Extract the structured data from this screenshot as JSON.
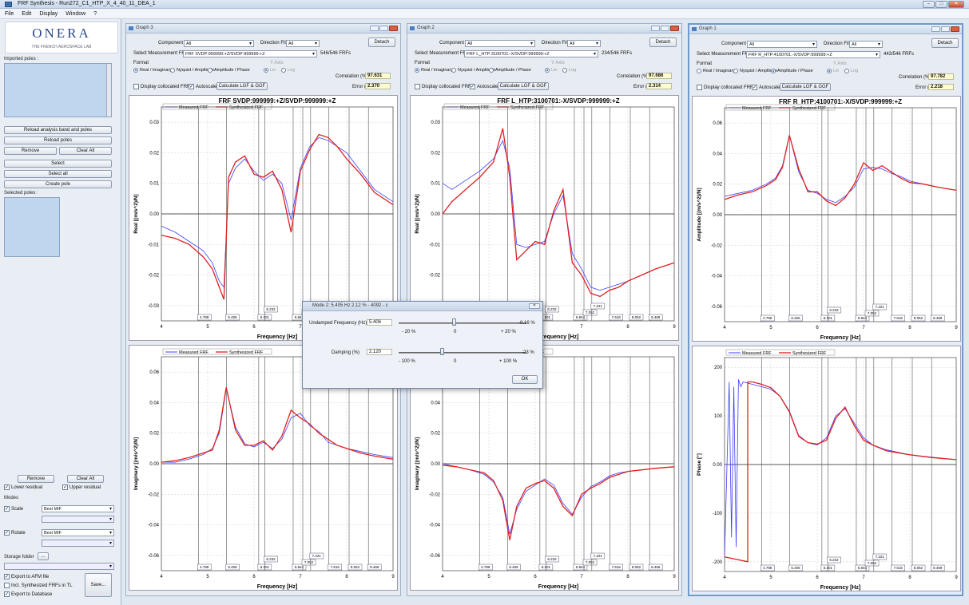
{
  "app": {
    "title": "FRF Synthesis - Run272_C1_HTP_X_4_40_11_DEA_1"
  },
  "menu": [
    "File",
    "Edit",
    "Display",
    "Window",
    "?"
  ],
  "left": {
    "logo_main": "ONERA",
    "logo_sub": "THE FRENCH AEROSPACE LAB",
    "imported_poles": "Imported poles :",
    "reload_band_poles": "Reload analysis band and poles",
    "reload_poles": "Reload poles",
    "remove": "Remove",
    "clear_all": "Clear All",
    "select": "Select",
    "select_all": "Select all",
    "create_pole": "Create pole",
    "selected_poles": "Selected poles :",
    "remove2": "Remove",
    "clear_all2": "Clear All",
    "lower_residual": "Lower residual",
    "upper_residual": "Upper residual",
    "modes": "Modes",
    "scale": "Scale",
    "scale_val": "Best MIF",
    "rotate": "Rotate",
    "rotate_val": "Best MIF",
    "storage_folder": "Storage folder",
    "storage_btn": "...",
    "export_afm": "Export to AFM file",
    "incl_synth": "Incl. Synthesized FRFs in TL",
    "export_db": "Export to Database",
    "save": "Save..."
  },
  "common": {
    "component_filter": "Component Filter:",
    "direction_filter": "Direction Filter:",
    "all": "All",
    "select_frf": "Select Measurement FRF",
    "detach": "Detach",
    "format": "Format",
    "y_axis": "Y Axis",
    "real_imag": "Real / Imaginary",
    "nyquist": "Nyquist / Amplitude",
    "amp_phase": "Amplitude / Phase",
    "lin": "Lin",
    "log": "Log",
    "correlation": "Correlation (%):",
    "error": "Error (%):",
    "display_coll": "Display collocated FRFs",
    "autoscale": "Autoscale",
    "calc": "Calculate LGF & GGF",
    "measured": "Measured FRF",
    "synthesized": "Synthesized FRF",
    "xlabel": "Frequency [Hz]"
  },
  "panels": [
    {
      "title": "Graph 3",
      "frf": "FRF SVDP:999999:+Z/SVDP:999999:+Z",
      "count": "546/546 FRFs",
      "corr": "97.631",
      "err": "2.370",
      "plot_title": "FRF SVDP:999999:+Z/SVDP:999999:+Z",
      "fmt": 0
    },
    {
      "title": "Graph 2",
      "frf": "FRF L_HTP:3100701:-X/SVDP:999999:+Z",
      "count": "234/546 FRFs",
      "corr": "97.686",
      "err": "2.314",
      "plot_title": "FRF L_HTP:3100701:-X/SVDP:999999:+Z",
      "fmt": 0
    },
    {
      "title": "Graph 1",
      "frf": "FRF R_HTP:4100701:-X/SVDP:999999:+Z",
      "count": "443/546 FRFs",
      "corr": "97.782",
      "err": "2.218",
      "plot_title": "FRF R_HTP:4100701:-X/SVDP:999999:+Z",
      "fmt": 2
    }
  ],
  "chart_data": [
    {
      "type": "line",
      "name": "Graph 3 top",
      "ylabel": "Real [(m/s^2)/N]",
      "xlim": [
        4,
        9
      ],
      "ylim": [
        -0.035,
        0.035
      ],
      "yticks": [
        0.03,
        0.02,
        0.01,
        0.0,
        -0.01,
        -0.02,
        -0.03
      ],
      "series": [
        {
          "name": "Measured FRF",
          "color": "#3d3dff",
          "x": [
            4,
            4.3,
            4.6,
            4.9,
            5.1,
            5.25,
            5.35,
            5.45,
            5.6,
            5.8,
            6.0,
            6.2,
            6.4,
            6.6,
            6.8,
            7.0,
            7.2,
            7.4,
            7.6,
            7.8,
            8.0,
            8.3,
            8.6,
            9.0
          ],
          "y": [
            -0.004,
            -0.006,
            -0.009,
            -0.012,
            -0.016,
            -0.022,
            -0.024,
            0.01,
            0.015,
            0.018,
            0.014,
            0.011,
            0.013,
            0.01,
            -0.002,
            0.015,
            0.022,
            0.025,
            0.024,
            0.022,
            0.02,
            0.014,
            0.008,
            0.004
          ]
        },
        {
          "name": "Synthesized FRF",
          "color": "#e02020",
          "x": [
            4,
            4.3,
            4.6,
            4.9,
            5.1,
            5.25,
            5.35,
            5.45,
            5.6,
            5.8,
            6.0,
            6.2,
            6.4,
            6.6,
            6.8,
            7.0,
            7.2,
            7.4,
            7.6,
            7.8,
            8.0,
            8.3,
            8.6,
            9.0
          ],
          "y": [
            -0.007,
            -0.008,
            -0.01,
            -0.014,
            -0.018,
            -0.024,
            -0.028,
            0.012,
            0.017,
            0.019,
            0.013,
            0.012,
            0.014,
            0.008,
            -0.006,
            0.014,
            0.021,
            0.026,
            0.025,
            0.022,
            0.018,
            0.013,
            0.007,
            0.003
          ]
        }
      ]
    },
    {
      "type": "line",
      "name": "Graph 2 top",
      "ylabel": "Real [(m/s^2)/N]",
      "xlim": [
        4,
        9
      ],
      "ylim": [
        -0.035,
        0.035
      ],
      "yticks": [
        0.03,
        0.02,
        0.01,
        0.0,
        -0.01,
        -0.02,
        -0.03
      ],
      "series": [
        {
          "name": "Measured FRF",
          "color": "#3d3dff",
          "x": [
            4,
            4.2,
            4.5,
            4.8,
            5.1,
            5.3,
            5.45,
            5.6,
            5.8,
            6.0,
            6.2,
            6.4,
            6.6,
            6.8,
            7.0,
            7.2,
            7.4,
            7.6,
            7.8,
            8.0,
            8.3,
            8.6,
            9.0
          ],
          "y": [
            0.01,
            0.008,
            0.011,
            0.014,
            0.018,
            0.024,
            0.015,
            -0.01,
            -0.011,
            -0.01,
            -0.009,
            0.0,
            0.006,
            -0.013,
            -0.018,
            -0.024,
            -0.025,
            -0.024,
            -0.023,
            -0.022,
            -0.02,
            -0.018,
            -0.016
          ]
        },
        {
          "name": "Synthesized FRF",
          "color": "#e02020",
          "x": [
            4,
            4.2,
            4.5,
            4.8,
            5.1,
            5.3,
            5.45,
            5.6,
            5.8,
            6.0,
            6.2,
            6.4,
            6.6,
            6.8,
            7.0,
            7.2,
            7.4,
            7.6,
            7.8,
            8.0,
            8.3,
            8.6,
            9.0
          ],
          "y": [
            0.0,
            0.004,
            0.008,
            0.012,
            0.017,
            0.028,
            0.012,
            -0.015,
            -0.012,
            -0.009,
            -0.01,
            0.001,
            0.008,
            -0.016,
            -0.02,
            -0.026,
            -0.027,
            -0.025,
            -0.024,
            -0.022,
            -0.02,
            -0.018,
            -0.016
          ]
        }
      ]
    },
    {
      "type": "line",
      "name": "Graph 1 top",
      "ylabel": "Amplitude [(m/s^2)/N]",
      "xlim": [
        4,
        9
      ],
      "ylim": [
        -0.07,
        0.07
      ],
      "yticks": [
        0.06,
        0.04,
        0.02,
        0.0,
        -0.02,
        -0.04,
        -0.06
      ],
      "series": [
        {
          "name": "Measured FRF",
          "color": "#3d3dff",
          "x": [
            4,
            4.3,
            4.6,
            4.9,
            5.1,
            5.25,
            5.4,
            5.6,
            5.8,
            6.0,
            6.2,
            6.4,
            6.6,
            6.8,
            7.0,
            7.2,
            7.4,
            7.6,
            7.8,
            8.0,
            8.3,
            8.6,
            9.0
          ],
          "y": [
            0.012,
            0.014,
            0.016,
            0.02,
            0.024,
            0.032,
            0.052,
            0.028,
            0.016,
            0.014,
            0.01,
            0.008,
            0.012,
            0.018,
            0.03,
            0.031,
            0.03,
            0.027,
            0.025,
            0.022,
            0.02,
            0.018,
            0.016
          ]
        },
        {
          "name": "Synthesized FRF",
          "color": "#e02020",
          "x": [
            4,
            4.3,
            4.6,
            4.9,
            5.1,
            5.25,
            5.4,
            5.6,
            5.8,
            6.0,
            6.2,
            6.4,
            6.6,
            6.8,
            7.0,
            7.2,
            7.4,
            7.6,
            7.8,
            8.0,
            8.3,
            8.6,
            9.0
          ],
          "y": [
            0.01,
            0.013,
            0.015,
            0.019,
            0.023,
            0.031,
            0.052,
            0.03,
            0.015,
            0.015,
            0.009,
            0.006,
            0.011,
            0.02,
            0.034,
            0.029,
            0.032,
            0.028,
            0.024,
            0.021,
            0.02,
            0.018,
            0.016
          ]
        }
      ]
    },
    {
      "type": "line",
      "name": "Graph 3 bottom",
      "ylabel": "Imaginary [(m/s^2)/N]",
      "xlim": [
        4,
        9
      ],
      "ylim": [
        -0.07,
        0.07
      ],
      "yticks": [
        0.06,
        0.04,
        0.02,
        0.0,
        -0.02,
        -0.04,
        -0.06
      ],
      "series": [
        {
          "name": "Measured FRF",
          "color": "#3d3dff",
          "x": [
            4,
            4.3,
            4.6,
            4.9,
            5.1,
            5.25,
            5.4,
            5.6,
            5.8,
            6.0,
            6.2,
            6.4,
            6.6,
            6.8,
            7.0,
            7.2,
            7.4,
            7.6,
            7.8,
            8.0,
            8.3,
            8.6,
            9.0
          ],
          "y": [
            0.001,
            0.001,
            0.003,
            0.006,
            0.01,
            0.02,
            0.049,
            0.024,
            0.013,
            0.011,
            0.014,
            0.01,
            0.016,
            0.03,
            0.033,
            0.025,
            0.021,
            0.014,
            0.012,
            0.01,
            0.008,
            0.006,
            0.004
          ]
        },
        {
          "name": "Synthesized FRF",
          "color": "#e02020",
          "x": [
            4,
            4.3,
            4.6,
            4.9,
            5.1,
            5.25,
            5.4,
            5.6,
            5.8,
            6.0,
            6.2,
            6.4,
            6.6,
            6.8,
            7.0,
            7.2,
            7.4,
            7.6,
            7.8,
            8.0,
            8.3,
            8.6,
            9.0
          ],
          "y": [
            0.001,
            0.002,
            0.004,
            0.007,
            0.009,
            0.022,
            0.05,
            0.022,
            0.012,
            0.012,
            0.015,
            0.009,
            0.018,
            0.035,
            0.03,
            0.026,
            0.02,
            0.016,
            0.012,
            0.01,
            0.007,
            0.005,
            0.003
          ]
        }
      ]
    },
    {
      "type": "line",
      "name": "Graph 2 bottom",
      "ylabel": "Imaginary [(m/s^2)/N]",
      "xlim": [
        4,
        9
      ],
      "ylim": [
        -0.07,
        0.07
      ],
      "yticks": [
        0.06,
        0.04,
        0.02,
        0.0,
        -0.02,
        -0.04,
        -0.06
      ],
      "series": [
        {
          "name": "Measured FRF",
          "color": "#3d3dff",
          "x": [
            4,
            4.3,
            4.6,
            4.9,
            5.1,
            5.3,
            5.45,
            5.6,
            5.8,
            6.0,
            6.2,
            6.4,
            6.6,
            6.8,
            7.0,
            7.2,
            7.4,
            7.6,
            7.8,
            8.0,
            8.3,
            8.6,
            9.0
          ],
          "y": [
            0.0,
            -0.002,
            -0.004,
            -0.007,
            -0.012,
            -0.022,
            -0.046,
            -0.03,
            -0.018,
            -0.014,
            -0.01,
            -0.014,
            -0.026,
            -0.033,
            -0.022,
            -0.015,
            -0.012,
            -0.008,
            -0.006,
            -0.005,
            -0.004,
            -0.003,
            -0.002
          ]
        },
        {
          "name": "Synthesized FRF",
          "color": "#e02020",
          "x": [
            4,
            4.3,
            4.6,
            4.9,
            5.1,
            5.3,
            5.45,
            5.6,
            5.8,
            6.0,
            6.2,
            6.4,
            6.6,
            6.8,
            7.0,
            7.2,
            7.4,
            7.6,
            7.8,
            8.0,
            8.3,
            8.6,
            9.0
          ],
          "y": [
            -0.001,
            -0.002,
            -0.004,
            -0.006,
            -0.011,
            -0.024,
            -0.05,
            -0.028,
            -0.016,
            -0.013,
            -0.011,
            -0.016,
            -0.028,
            -0.034,
            -0.02,
            -0.016,
            -0.013,
            -0.009,
            -0.007,
            -0.005,
            -0.004,
            -0.003,
            -0.002
          ]
        }
      ]
    },
    {
      "type": "line",
      "name": "Graph 1 bottom",
      "ylabel": "Phase [°]",
      "xlim": [
        4,
        9
      ],
      "ylim": [
        -220,
        220
      ],
      "yticks": [
        200,
        100,
        0,
        -100,
        -200
      ],
      "series": [
        {
          "name": "Measured FRF",
          "color": "#3d3dff",
          "x": [
            4.0,
            4.1,
            4.15,
            4.2,
            4.25,
            4.3,
            4.35,
            4.4,
            4.6,
            4.8,
            5.0,
            5.2,
            5.4,
            5.6,
            5.8,
            6.0,
            6.2,
            6.4,
            6.6,
            6.8,
            7.0,
            7.2,
            7.5,
            8.0,
            8.5,
            9.0
          ],
          "y": [
            -190,
            170,
            -150,
            160,
            -170,
            175,
            160,
            170,
            165,
            160,
            155,
            140,
            110,
            60,
            45,
            40,
            55,
            100,
            115,
            85,
            55,
            40,
            30,
            20,
            15,
            10
          ]
        },
        {
          "name": "Synthesized FRF",
          "color": "#e02020",
          "x": [
            4.0,
            4.5,
            4.5,
            4.6,
            4.8,
            5.0,
            5.2,
            5.4,
            5.6,
            5.8,
            6.0,
            6.2,
            6.4,
            6.6,
            6.8,
            7.0,
            7.2,
            7.5,
            8.0,
            8.5,
            9.0
          ],
          "y": [
            -190,
            -200,
            170,
            170,
            165,
            158,
            140,
            108,
            58,
            45,
            42,
            50,
            95,
            118,
            80,
            50,
            40,
            28,
            20,
            14,
            10
          ]
        }
      ]
    }
  ],
  "mode_lines": {
    "freqs": [
      4.798,
      5.406,
      6.101,
      6.232,
      6.844,
      7.052,
      7.221,
      7.616,
      8.052,
      8.469
    ],
    "labels": [
      "4.798",
      "5.406",
      "6.101",
      "6.232",
      "6.844",
      "7.052",
      "7.221",
      "7.616",
      "8.052",
      "8.469"
    ]
  },
  "dialog": {
    "title": "Mode 2: 5.405 Hz  2.12 %  - 4092 - c",
    "undamped": "Undamped Frequency (Hz)",
    "undamped_val": "5.406",
    "undamped_pct": "-0.16 %",
    "s1_min": "- 20 %",
    "s1_mid": "0",
    "s1_max": "+ 20 %",
    "damping": "Damping (%)",
    "damping_val": "2.120",
    "damping_pct": "-23 %",
    "s2_min": "- 100 %",
    "s2_mid": "0",
    "s2_max": "+ 100 %",
    "ok": "OK"
  }
}
